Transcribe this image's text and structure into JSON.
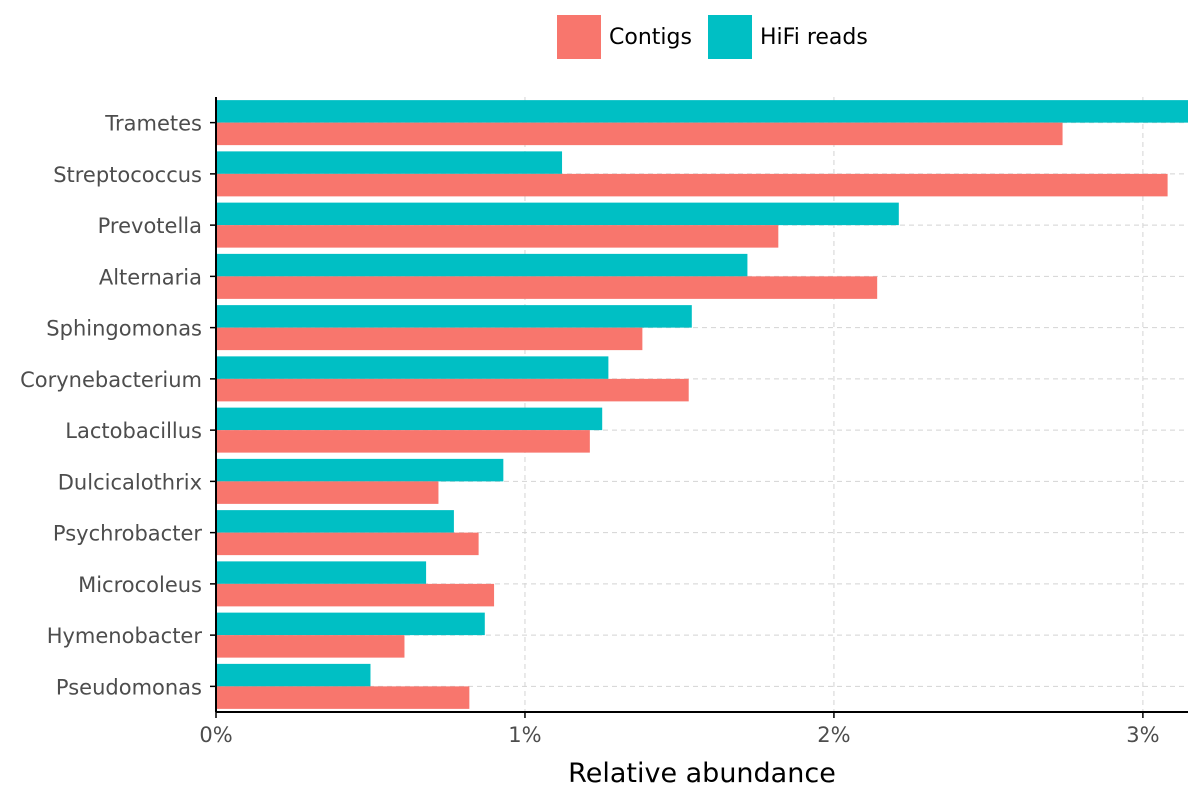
{
  "chart_data": {
    "type": "bar",
    "orientation": "horizontal",
    "title": "",
    "xlabel": "Relative abundance",
    "ylabel": "",
    "xlim": [
      0,
      3.146
    ],
    "xticks": [
      0,
      1,
      2,
      3
    ],
    "xtick_labels": [
      "0%",
      "1%",
      "2%",
      "3%"
    ],
    "grid": true,
    "legend_position": "top",
    "categories": [
      "Trametes",
      "Streptococcus",
      "Prevotella",
      "Alternaria",
      "Sphingomonas",
      "Corynebacterium",
      "Lactobacillus",
      "Dulcicalothrix",
      "Psychrobacter",
      "Microcoleus",
      "Hymenobacter",
      "Pseudomonas"
    ],
    "series": [
      {
        "name": "Contigs",
        "color": "#F8766D",
        "values": [
          2.74,
          3.08,
          1.82,
          2.14,
          1.38,
          1.53,
          1.21,
          0.72,
          0.85,
          0.9,
          0.61,
          0.82
        ]
      },
      {
        "name": "HiFi reads",
        "color": "#00BFC4",
        "values": [
          3.15,
          1.12,
          2.21,
          1.72,
          1.54,
          1.27,
          1.25,
          0.93,
          0.77,
          0.68,
          0.87,
          0.5
        ]
      }
    ]
  }
}
